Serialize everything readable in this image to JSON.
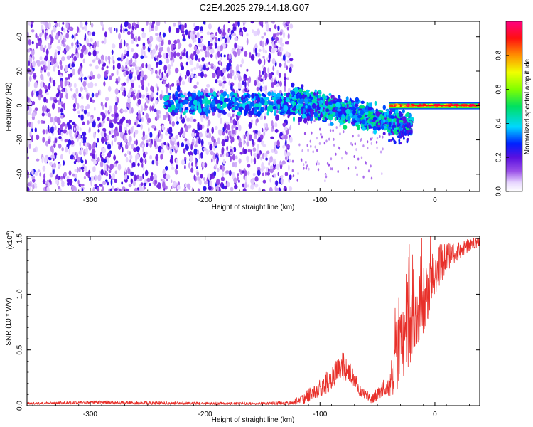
{
  "title": "C2E4.2025.279.14.18.G07",
  "colors": {
    "snr_line": "#e8302a",
    "frame": "#000000",
    "background": "#ffffff"
  },
  "chart_data": [
    {
      "type": "heatmap",
      "name": "spectrogram",
      "xlabel": "Height of straight line (km)",
      "ylabel": "Frequency (Hz)",
      "xlim": [
        -355,
        39
      ],
      "ylim": [
        -50,
        49
      ],
      "xticks": [
        -300,
        -200,
        -100,
        0
      ],
      "yticks": [
        -40,
        -20,
        0,
        20,
        40
      ],
      "colorbar": {
        "label": "Normalized spectral amplitude",
        "range": [
          0,
          1
        ],
        "ticks": [
          "0.0",
          "0.2",
          "0.4",
          "0.6",
          "0.8"
        ],
        "tick_values": [
          0,
          0.2,
          0.4,
          0.6,
          0.8
        ],
        "colormap": "rainbow (white to purple to blue to cyan to green to yellow to red to magenta)"
      },
      "features": [
        {
          "description": "broadband low-amplitude scatter",
          "x_range": [
            -355,
            -125
          ],
          "freq_range": [
            -50,
            49
          ],
          "amplitude": [
            0.05,
            0.25
          ]
        },
        {
          "description": "band clusters",
          "x_range": [
            -235,
            -125
          ],
          "freq_range": [
            -5,
            7
          ],
          "amplitude": [
            0.3,
            0.45
          ]
        },
        {
          "description": "descending band",
          "x_range": [
            -125,
            -20
          ],
          "freq_center_from": 3,
          "freq_center_to": -12,
          "amplitude": [
            0.3,
            0.5
          ]
        },
        {
          "description": "narrow carrier line",
          "x_range": [
            -40,
            39
          ],
          "freq_range": [
            -1,
            2
          ],
          "amplitude": [
            0.7,
            1.0
          ]
        }
      ]
    },
    {
      "type": "line",
      "name": "snr",
      "xlabel": "Height of straight line (km)",
      "ylabel": "SNR (10 * V/V)",
      "scale_label": "(x10",
      "scale_exponent": "4",
      "scale_close": ")",
      "xlim": [
        -355,
        39
      ],
      "ylim": [
        0,
        1.52
      ],
      "xticks": [
        -300,
        -200,
        -100,
        0
      ],
      "yticks": [
        "0.0",
        "0.5",
        "1.0",
        "1.5"
      ],
      "ytick_values": [
        0,
        0.5,
        1.0,
        1.5
      ],
      "series": [
        {
          "name": "SNR",
          "x": [
            -355,
            -300,
            -250,
            -200,
            -150,
            -125,
            -115,
            -105,
            -95,
            -90,
            -85,
            -80,
            -75,
            -70,
            -65,
            -60,
            -55,
            -50,
            -45,
            -40,
            -35,
            -30,
            -25,
            -20,
            -15,
            -10,
            -5,
            0,
            5,
            10,
            15,
            20,
            25,
            30,
            35,
            39
          ],
          "y": [
            0.02,
            0.03,
            0.025,
            0.02,
            0.02,
            0.025,
            0.06,
            0.12,
            0.2,
            0.25,
            0.3,
            0.35,
            0.3,
            0.22,
            0.14,
            0.1,
            0.06,
            0.1,
            0.15,
            0.2,
            0.35,
            0.55,
            0.7,
            0.8,
            0.88,
            0.95,
            1.05,
            1.18,
            1.27,
            1.32,
            1.36,
            1.39,
            1.42,
            1.44,
            1.46,
            1.47
          ],
          "y_spread": [
            0.01,
            0.015,
            0.015,
            0.012,
            0.012,
            0.02,
            0.05,
            0.07,
            0.1,
            0.11,
            0.12,
            0.13,
            0.11,
            0.08,
            0.06,
            0.04,
            0.04,
            0.06,
            0.08,
            0.12,
            0.25,
            0.35,
            0.4,
            0.38,
            0.32,
            0.3,
            0.28,
            0.24,
            0.18,
            0.14,
            0.1,
            0.08,
            0.07,
            0.06,
            0.05,
            0.04
          ]
        }
      ]
    }
  ]
}
